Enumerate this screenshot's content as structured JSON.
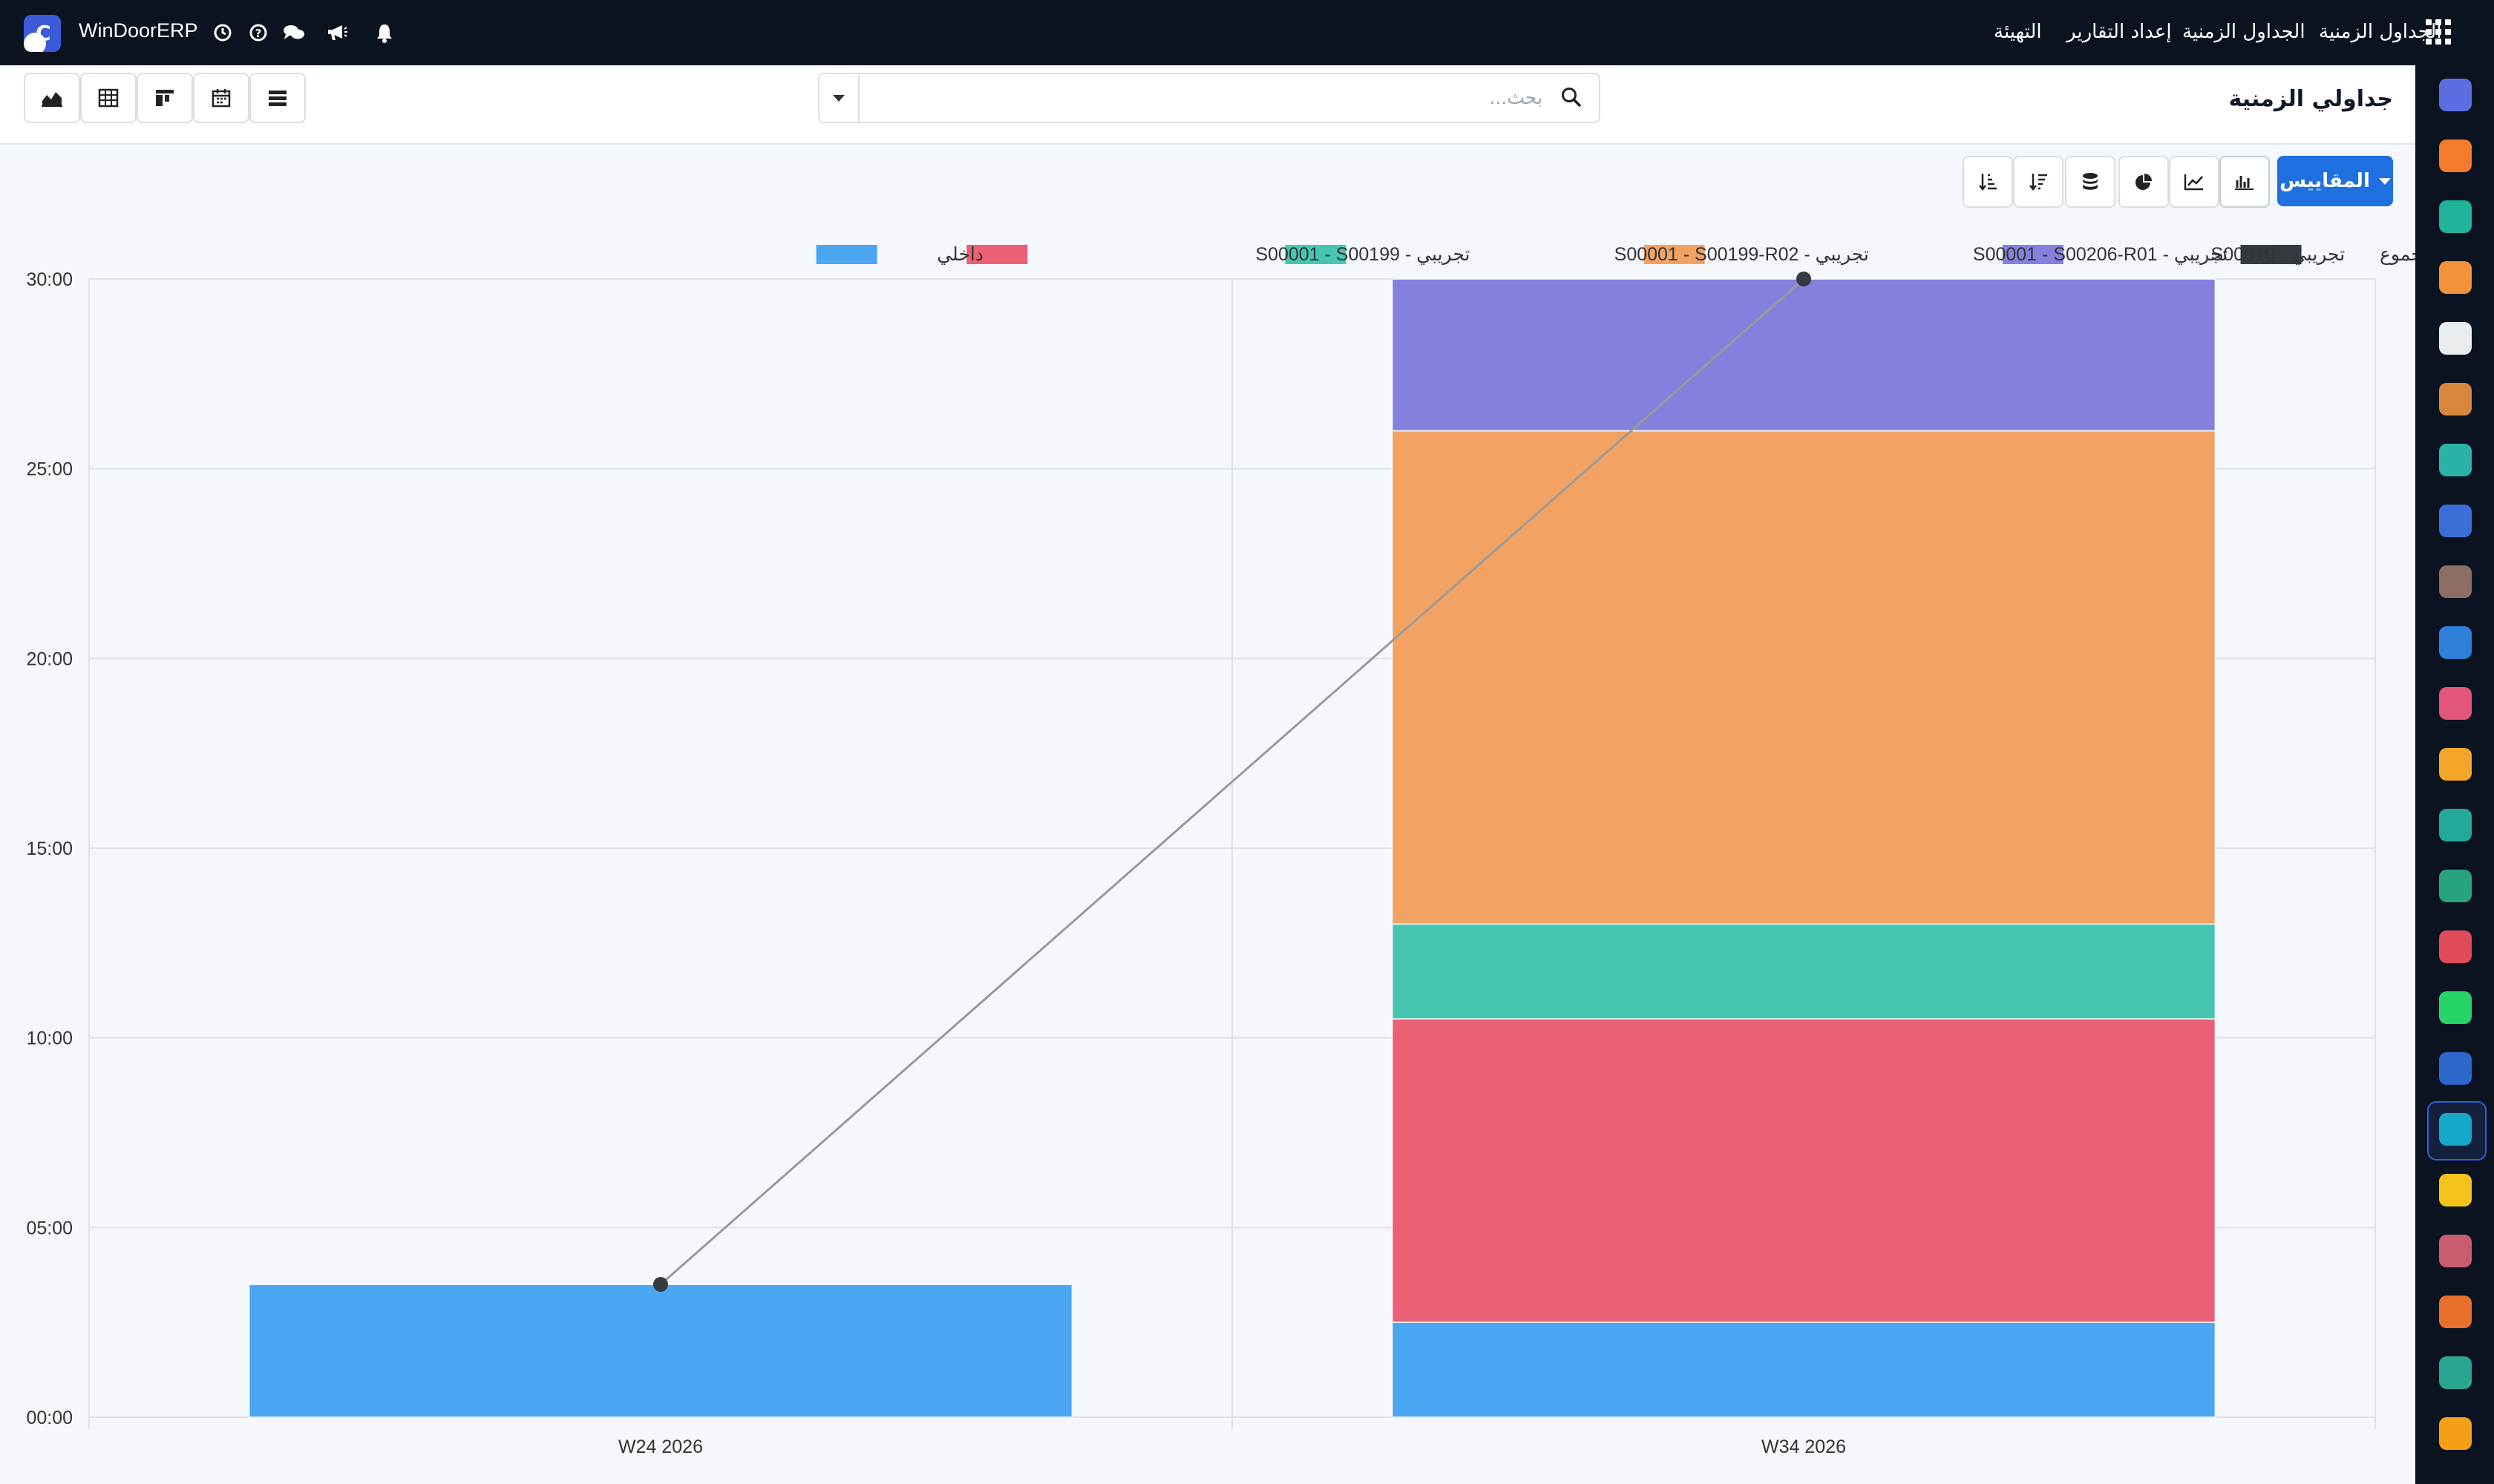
{
  "navbar": {
    "brand": "WinDoorERP",
    "menu": [
      "الجداول الزمنية",
      "الجداول الزمنية",
      "إعداد التقارير",
      "التهيئة"
    ]
  },
  "icons": {
    "apps": "apps-grid-icon",
    "clock": "clock-icon",
    "help": "help-icon",
    "chat": "chat-icon",
    "announce": "megaphone-icon",
    "bell": "bell-icon",
    "search": "search-icon"
  },
  "control_panel": {
    "page_title": "جداولي الزمنية",
    "search_placeholder": "بحث..."
  },
  "toolbar": {
    "measures_label": "المقاييس"
  },
  "colors": {
    "accent": "#1f6fe0",
    "navbar": "#0b1220",
    "internal": "#4ba6f2",
    "s00199": "#ea6074",
    "s00199_r02": "#46c6b0",
    "s00206_r01": "#f2a262",
    "s00010": "#8580dd",
    "total": "#343a40"
  },
  "chart_data": {
    "type": "bar",
    "stacked": true,
    "categories": [
      "W24 2026",
      "W34 2026"
    ],
    "ylim": [
      0,
      30
    ],
    "yticks": [
      "00:00",
      "05:00",
      "10:00",
      "15:00",
      "20:00",
      "25:00",
      "30:00"
    ],
    "series": [
      {
        "name": "داخلي",
        "color": "#4ba6f2",
        "values": [
          3.5,
          2.5
        ]
      },
      {
        "name": "تجريبي - S00001 - S00199",
        "color": "#ea6074",
        "values": [
          0,
          8.0
        ]
      },
      {
        "name": "تجريبي - S00001 - S00199-R02",
        "color": "#46c6b0",
        "values": [
          0,
          2.5
        ]
      },
      {
        "name": "تجريبي - S00001 - S00206-R01",
        "color": "#f2a262",
        "values": [
          0,
          13.0
        ]
      },
      {
        "name": "تجريبي - S00010",
        "color": "#8580dd",
        "values": [
          0,
          4.0
        ]
      }
    ],
    "total": {
      "name": "المجموع",
      "color": "#343a40",
      "type": "line",
      "values": [
        3.5,
        30.0
      ]
    },
    "grid": true,
    "legend_position": "top-right"
  }
}
